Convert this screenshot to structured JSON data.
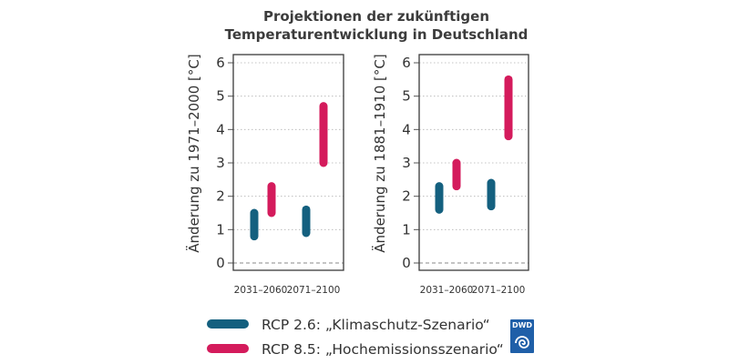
{
  "chart_data": {
    "title_lines": [
      "Projektionen der zukünftigen",
      "Temperaturentwicklung in Deutschland"
    ],
    "type": "range-bar",
    "categories": [
      "2031–2060",
      "2071–2100"
    ],
    "y_ticks": [
      0,
      1,
      2,
      3,
      4,
      5,
      6
    ],
    "ylim": [
      -0.2,
      6.4
    ],
    "panels": [
      {
        "ylabel": "Änderung zu 1971–2000 [°C]",
        "series": [
          {
            "name": "RCP 2.6",
            "ranges": [
              [
                0.8,
                1.5
              ],
              [
                0.9,
                1.6
              ]
            ]
          },
          {
            "name": "RCP 8.5",
            "ranges": [
              [
                1.5,
                2.3
              ],
              [
                3.0,
                4.7
              ]
            ]
          }
        ]
      },
      {
        "ylabel": "Änderung zu 1881–1910 [°C]",
        "series": [
          {
            "name": "RCP 2.6",
            "ranges": [
              [
                1.6,
                2.3
              ],
              [
                1.7,
                2.4
              ]
            ]
          },
          {
            "name": "RCP 8.5",
            "ranges": [
              [
                2.3,
                3.0
              ],
              [
                3.8,
                5.5
              ]
            ]
          }
        ]
      }
    ],
    "legend": [
      {
        "series": "RCP 2.6",
        "label": "RCP 2.6: „Klimaschutz-Szenario“",
        "color": "#14607f"
      },
      {
        "series": "RCP 8.5",
        "label": "RCP 8.5: „Hochemissionsszenario“",
        "color": "#d41b5c"
      }
    ],
    "grid": "dotted-horizontal"
  },
  "logo": {
    "text": "DWD",
    "color": "#1f5fa8"
  }
}
